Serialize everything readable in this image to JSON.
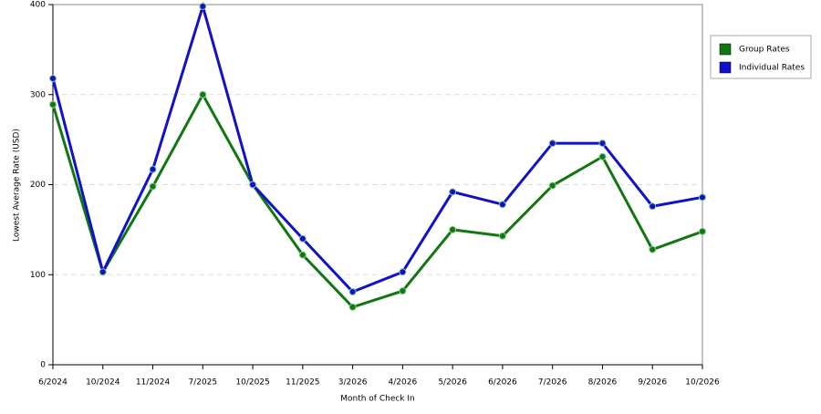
{
  "chart_data": {
    "type": "line",
    "x_label": "Month of Check In",
    "y_label": "Lowest Average Rate (USD)",
    "categories": [
      "6/2024",
      "10/2024",
      "11/2024",
      "7/2025",
      "10/2025",
      "11/2025",
      "3/2026",
      "4/2026",
      "5/2026",
      "6/2026",
      "7/2026",
      "8/2026",
      "9/2026",
      "10/2026"
    ],
    "series": [
      {
        "name": "Group Rates",
        "color": "#117711",
        "values": [
          289,
          103,
          198,
          300,
          200,
          122,
          64,
          82,
          150,
          143,
          199,
          231,
          128,
          148
        ]
      },
      {
        "name": "Individual Rates",
        "color": "#1111cc",
        "values": [
          318,
          103,
          217,
          398,
          200,
          140,
          81,
          103,
          192,
          178,
          246,
          246,
          176,
          186
        ]
      }
    ],
    "ylim": [
      0,
      400
    ],
    "yticks": [
      0,
      100,
      200,
      300,
      400
    ],
    "grid": true,
    "legend": "right"
  }
}
